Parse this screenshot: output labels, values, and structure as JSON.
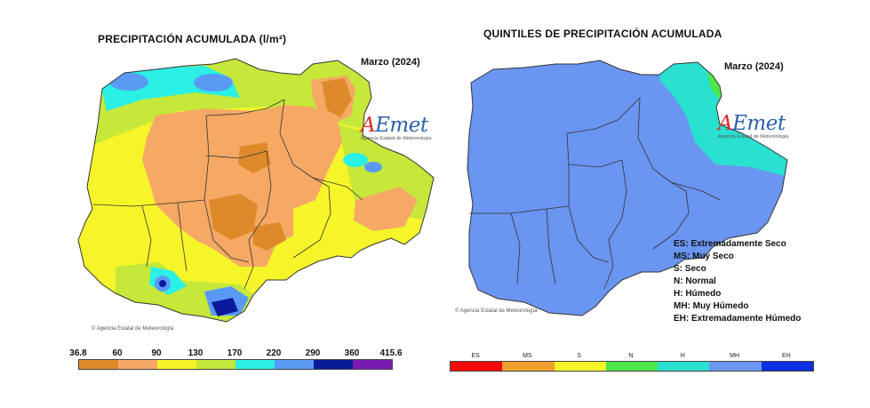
{
  "left": {
    "title": "PRECIPITACIÓN ACUMULADA  (l/m²)",
    "month": "Marzo (2024)",
    "logo": {
      "a": "A",
      "emet": "Emet",
      "sub": "Agencia Estatal de Meteorología"
    },
    "copyright": "© Agencia Estatal de Meteorología",
    "legend": {
      "breaks": [
        "36.8",
        "60",
        "90",
        "130",
        "170",
        "220",
        "290",
        "360",
        "415.6"
      ],
      "colors": [
        "#de8a2a",
        "#f5a964",
        "#f5f52a",
        "#c5e83a",
        "#2af0e5",
        "#5a9af5",
        "#0a1a9a",
        "#7a1ab5"
      ]
    }
  },
  "right": {
    "title": "QUINTILES DE PRECIPITACIÓN ACUMULADA",
    "month": "Marzo (2024)",
    "logo": {
      "a": "A",
      "emet": "Emet",
      "sub": "Agencia Estatal de Meteorología"
    },
    "copyright": "© Agencia Estatal de Meteorología",
    "key": [
      "ES: Extremadamente Seco",
      "MS: Muy Seco",
      "S: Seco",
      "N: Normal",
      "H: Húmedo",
      "MH: Muy Húmedo",
      "EH: Extremadamente Húmedo"
    ],
    "legend": {
      "labels": [
        "ES",
        "MS",
        "S",
        "N",
        "H",
        "MH",
        "EH"
      ],
      "colors": [
        "#f50a0a",
        "#f0a030",
        "#f5f52a",
        "#4ce84c",
        "#2ae0d0",
        "#6a95f0",
        "#0a30e0"
      ]
    }
  }
}
